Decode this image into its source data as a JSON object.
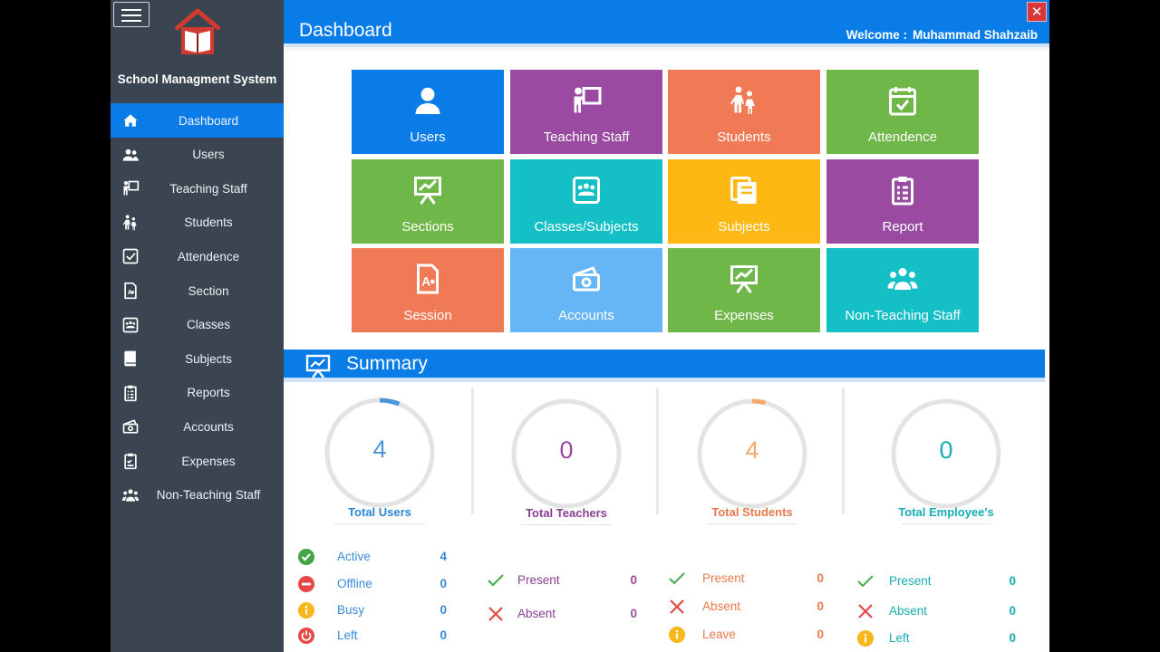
{
  "app": {
    "title": "School Managment System"
  },
  "header": {
    "title": "Dashboard",
    "welcome_label": "Welcome :",
    "user_name": "Muhammad Shahzaib",
    "close_label": "✕"
  },
  "sidebar": {
    "items": [
      {
        "label": "Dashboard",
        "icon": "home-icon",
        "active": true
      },
      {
        "label": "Users",
        "icon": "users-icon"
      },
      {
        "label": "Teaching Staff",
        "icon": "teacher-icon"
      },
      {
        "label": "Students",
        "icon": "students-icon"
      },
      {
        "label": "Attendence",
        "icon": "checkbox-icon"
      },
      {
        "label": "Section",
        "icon": "section-icon"
      },
      {
        "label": "Classes",
        "icon": "classes-icon"
      },
      {
        "label": "Subjects",
        "icon": "book-icon"
      },
      {
        "label": "Reports",
        "icon": "report-icon"
      },
      {
        "label": "Accounts",
        "icon": "money-icon"
      },
      {
        "label": "Expenses",
        "icon": "clipboard-icon"
      },
      {
        "label": "Non-Teaching Staff",
        "icon": "group-icon"
      }
    ]
  },
  "tiles": [
    {
      "label": "Users",
      "color": "#0a7ce8",
      "icon": "user-icon"
    },
    {
      "label": "Teaching Staff",
      "color": "#9a4aa1",
      "icon": "teacher-icon"
    },
    {
      "label": "Students",
      "color": "#f07a55",
      "icon": "students-icon"
    },
    {
      "label": "Attendence",
      "color": "#70b74a",
      "icon": "calendar-check-icon"
    },
    {
      "label": "Sections",
      "color": "#70b74a",
      "icon": "presentation-icon"
    },
    {
      "label": "Classes/Subjects",
      "color": "#15bfc6",
      "icon": "classes-icon"
    },
    {
      "label": "Subjects",
      "color": "#fdb813",
      "icon": "books-icon"
    },
    {
      "label": "Report",
      "color": "#9a4aa1",
      "icon": "report-icon"
    },
    {
      "label": "Session",
      "color": "#f07a55",
      "icon": "session-icon"
    },
    {
      "label": "Accounts",
      "color": "#66b5f5",
      "icon": "money-icon"
    },
    {
      "label": "Expenses",
      "color": "#70b74a",
      "icon": "presentation-icon"
    },
    {
      "label": "Non-Teaching Staff",
      "color": "#15bfc6",
      "icon": "group-icon"
    }
  ],
  "summary": {
    "title": "Summary",
    "cards": [
      {
        "title": "Total Users",
        "value": "4",
        "color": "#4b95d8",
        "title_color": "#2a86d4",
        "stats": [
          {
            "label": "Active",
            "value": "4",
            "icon": "check-circle-icon"
          },
          {
            "label": "Offline",
            "value": "0",
            "icon": "minus-circle-icon"
          },
          {
            "label": "Busy",
            "value": "0",
            "icon": "info-circle-icon"
          },
          {
            "label": "Left",
            "value": "0",
            "icon": "power-icon"
          }
        ]
      },
      {
        "title": "Total Teachers",
        "value": "0",
        "color": "#9a4aa1",
        "title_color": "#8b3f94",
        "stats": [
          {
            "label": "Present",
            "value": "0",
            "icon": "check-icon"
          },
          {
            "label": "Absent",
            "value": "0",
            "icon": "x-icon"
          }
        ]
      },
      {
        "title": "Total Students",
        "value": "4",
        "color": "#f5a86b",
        "title_color": "#e67a4c",
        "stats": [
          {
            "label": "Present",
            "value": "0",
            "icon": "check-icon"
          },
          {
            "label": "Absent",
            "value": "0",
            "icon": "x-icon"
          },
          {
            "label": "Leave",
            "value": "0",
            "icon": "info-circle-icon"
          }
        ]
      },
      {
        "title": "Total Employee's",
        "value": "0",
        "color": "#15aeb5",
        "title_color": "#15aeb5",
        "stats": [
          {
            "label": "Present",
            "value": "0",
            "icon": "check-icon"
          },
          {
            "label": "Absent",
            "value": "0",
            "icon": "x-icon"
          },
          {
            "label": "Left",
            "value": "0",
            "icon": "info-circle-icon"
          }
        ]
      }
    ]
  }
}
